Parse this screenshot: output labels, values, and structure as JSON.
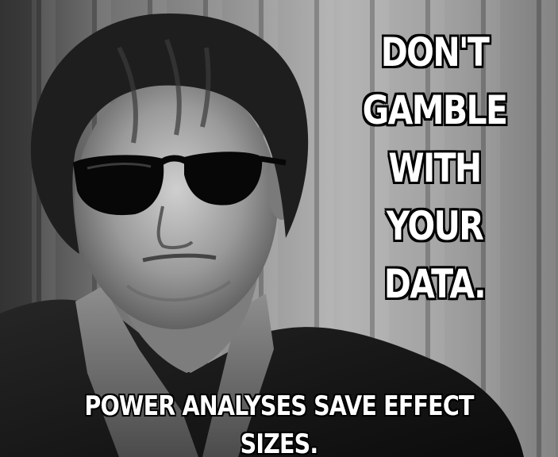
{
  "meme": {
    "headline_lines": [
      "DON'T",
      "GAMBLE",
      "WITH",
      "YOUR",
      "DATA."
    ],
    "caption": "POWER ANALYSES SAVE EFFECT SIZES."
  },
  "colors": {
    "text": "#ffffff",
    "outline": "#000000",
    "photo_tone": "grayscale"
  }
}
